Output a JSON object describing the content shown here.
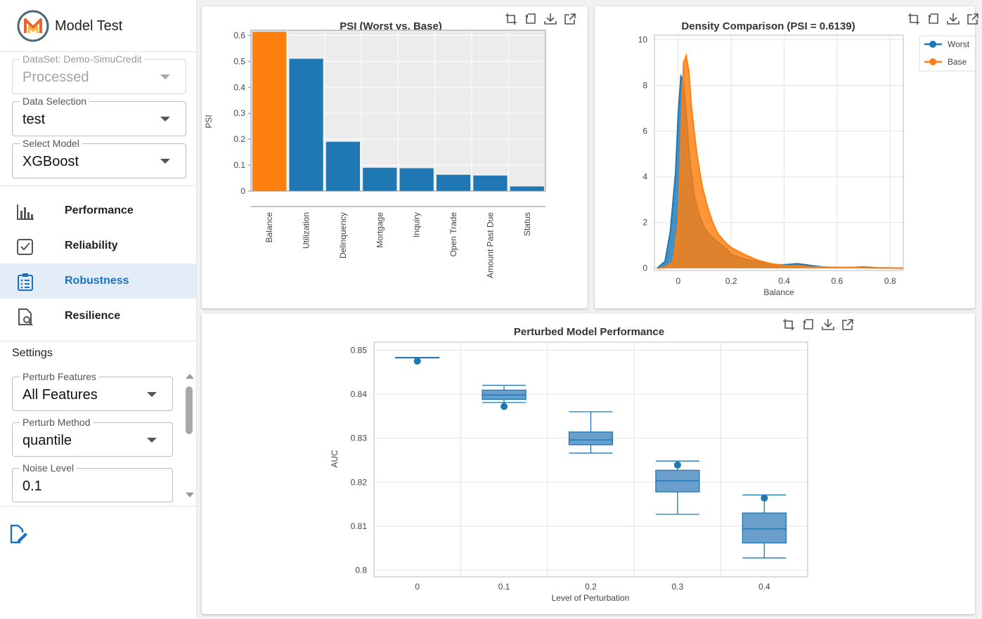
{
  "app": {
    "title": "Model Test"
  },
  "controls": {
    "dataset": {
      "label": "DataSet: Demo-SimuCredit",
      "value": "Processed"
    },
    "data_selection": {
      "label": "Data Selection",
      "value": "test"
    },
    "select_model": {
      "label": "Select Model",
      "value": "XGBoost"
    }
  },
  "nav": [
    {
      "label": "Performance",
      "icon": "bar-chart-icon"
    },
    {
      "label": "Reliability",
      "icon": "checkbox-icon"
    },
    {
      "label": "Robustness",
      "icon": "clipboard-list-icon",
      "active": true
    },
    {
      "label": "Resilience",
      "icon": "document-search-icon"
    }
  ],
  "settings": {
    "title": "Settings",
    "perturb_features": {
      "label": "Perturb Features",
      "value": "All Features"
    },
    "perturb_method": {
      "label": "Perturb Method",
      "value": "quantile"
    },
    "noise_level": {
      "label": "Noise Level",
      "value": "0.1"
    }
  },
  "toolbar_icons": [
    "crop-icon",
    "reset-icon",
    "download-icon",
    "open-external-icon"
  ],
  "colors": {
    "blue": "#1f77b4",
    "orange": "#ff7f0e",
    "active_nav_bg": "#e3edf8",
    "active_nav_text": "#1b72c4"
  },
  "chart_data": [
    {
      "type": "bar",
      "title": "PSI (Worst vs. Base)",
      "ylabel": "PSI",
      "xlabel": "",
      "ylim": [
        0,
        0.62
      ],
      "yticks": [
        0,
        0.1,
        0.2,
        0.3,
        0.4,
        0.5,
        0.6
      ],
      "categories": [
        "Balance",
        "Utilization",
        "Delinquency",
        "Mortgage",
        "Inquiry",
        "Open Trade",
        "Amount Past Due",
        "Status"
      ],
      "values": [
        0.614,
        0.51,
        0.19,
        0.09,
        0.088,
        0.063,
        0.06,
        0.018
      ],
      "highlight_index": 0,
      "grid": true
    },
    {
      "type": "area",
      "title": "Density Comparison (PSI = 0.6139)",
      "xlabel": "Balance",
      "ylabel": "",
      "xlim": [
        -0.09,
        0.85
      ],
      "ylim": [
        -0.1,
        10.2
      ],
      "xticks": [
        0,
        0.2,
        0.4,
        0.6,
        0.8
      ],
      "yticks": [
        0,
        2,
        4,
        6,
        8,
        10
      ],
      "legend_position": "top-right",
      "series": [
        {
          "name": "Worst",
          "color": "#1f77b4",
          "x": [
            -0.08,
            -0.05,
            -0.03,
            -0.01,
            0.0,
            0.01,
            0.02,
            0.03,
            0.04,
            0.06,
            0.08,
            0.1,
            0.12,
            0.15,
            0.18,
            0.2,
            0.25,
            0.3,
            0.35,
            0.4,
            0.45,
            0.5,
            0.55,
            0.6,
            0.65,
            0.7,
            0.75,
            0.8,
            0.85
          ],
          "y": [
            0.0,
            0.3,
            1.6,
            4.2,
            6.8,
            8.4,
            8.2,
            6.8,
            5.2,
            3.2,
            2.3,
            1.75,
            1.45,
            1.15,
            0.85,
            0.6,
            0.4,
            0.3,
            0.15,
            0.15,
            0.2,
            0.12,
            0.05,
            0.03,
            0.03,
            0.05,
            0.02,
            0.01,
            0.0
          ]
        },
        {
          "name": "Base",
          "color": "#ff7f0e",
          "x": [
            -0.08,
            -0.05,
            -0.02,
            0.0,
            0.01,
            0.02,
            0.03,
            0.04,
            0.05,
            0.07,
            0.09,
            0.11,
            0.13,
            0.15,
            0.18,
            0.2,
            0.25,
            0.3,
            0.35,
            0.4,
            0.45,
            0.5,
            0.55,
            0.6,
            0.65,
            0.7,
            0.75,
            0.8,
            0.85
          ],
          "y": [
            0.0,
            0.02,
            0.3,
            2.0,
            5.5,
            9.0,
            9.3,
            8.6,
            7.0,
            5.0,
            3.6,
            2.7,
            2.0,
            1.5,
            1.1,
            0.9,
            0.6,
            0.35,
            0.2,
            0.12,
            0.1,
            0.06,
            0.05,
            0.03,
            0.03,
            0.02,
            0.01,
            0.01,
            0.0
          ]
        }
      ]
    },
    {
      "type": "box",
      "title": "Perturbed Model Performance",
      "xlabel": "Level of Perturbation",
      "ylabel": "AUC",
      "ylim": [
        0.7985,
        0.8518
      ],
      "yticks": [
        0.8,
        0.81,
        0.82,
        0.83,
        0.84,
        0.85
      ],
      "categories": [
        "0",
        "0.1",
        "0.2",
        "0.3",
        "0.4"
      ],
      "boxes": [
        {
          "x": "0",
          "min": 0.8483,
          "q1": 0.8483,
          "median": 0.8483,
          "q3": 0.8483,
          "max": 0.8483,
          "outliers": [
            0.8475
          ]
        },
        {
          "x": "0.1",
          "min": 0.8381,
          "q1": 0.8388,
          "median": 0.8398,
          "q3": 0.8409,
          "max": 0.842,
          "outliers": [
            0.8372
          ]
        },
        {
          "x": "0.2",
          "min": 0.8266,
          "q1": 0.8285,
          "median": 0.8296,
          "q3": 0.8314,
          "max": 0.836,
          "outliers": []
        },
        {
          "x": "0.3",
          "min": 0.8127,
          "q1": 0.8178,
          "median": 0.8203,
          "q3": 0.8227,
          "max": 0.8248,
          "outliers": [
            0.8239
          ]
        },
        {
          "x": "0.4",
          "min": 0.8028,
          "q1": 0.8062,
          "median": 0.8094,
          "q3": 0.813,
          "max": 0.8171,
          "outliers": [
            0.8164
          ]
        }
      ]
    }
  ]
}
